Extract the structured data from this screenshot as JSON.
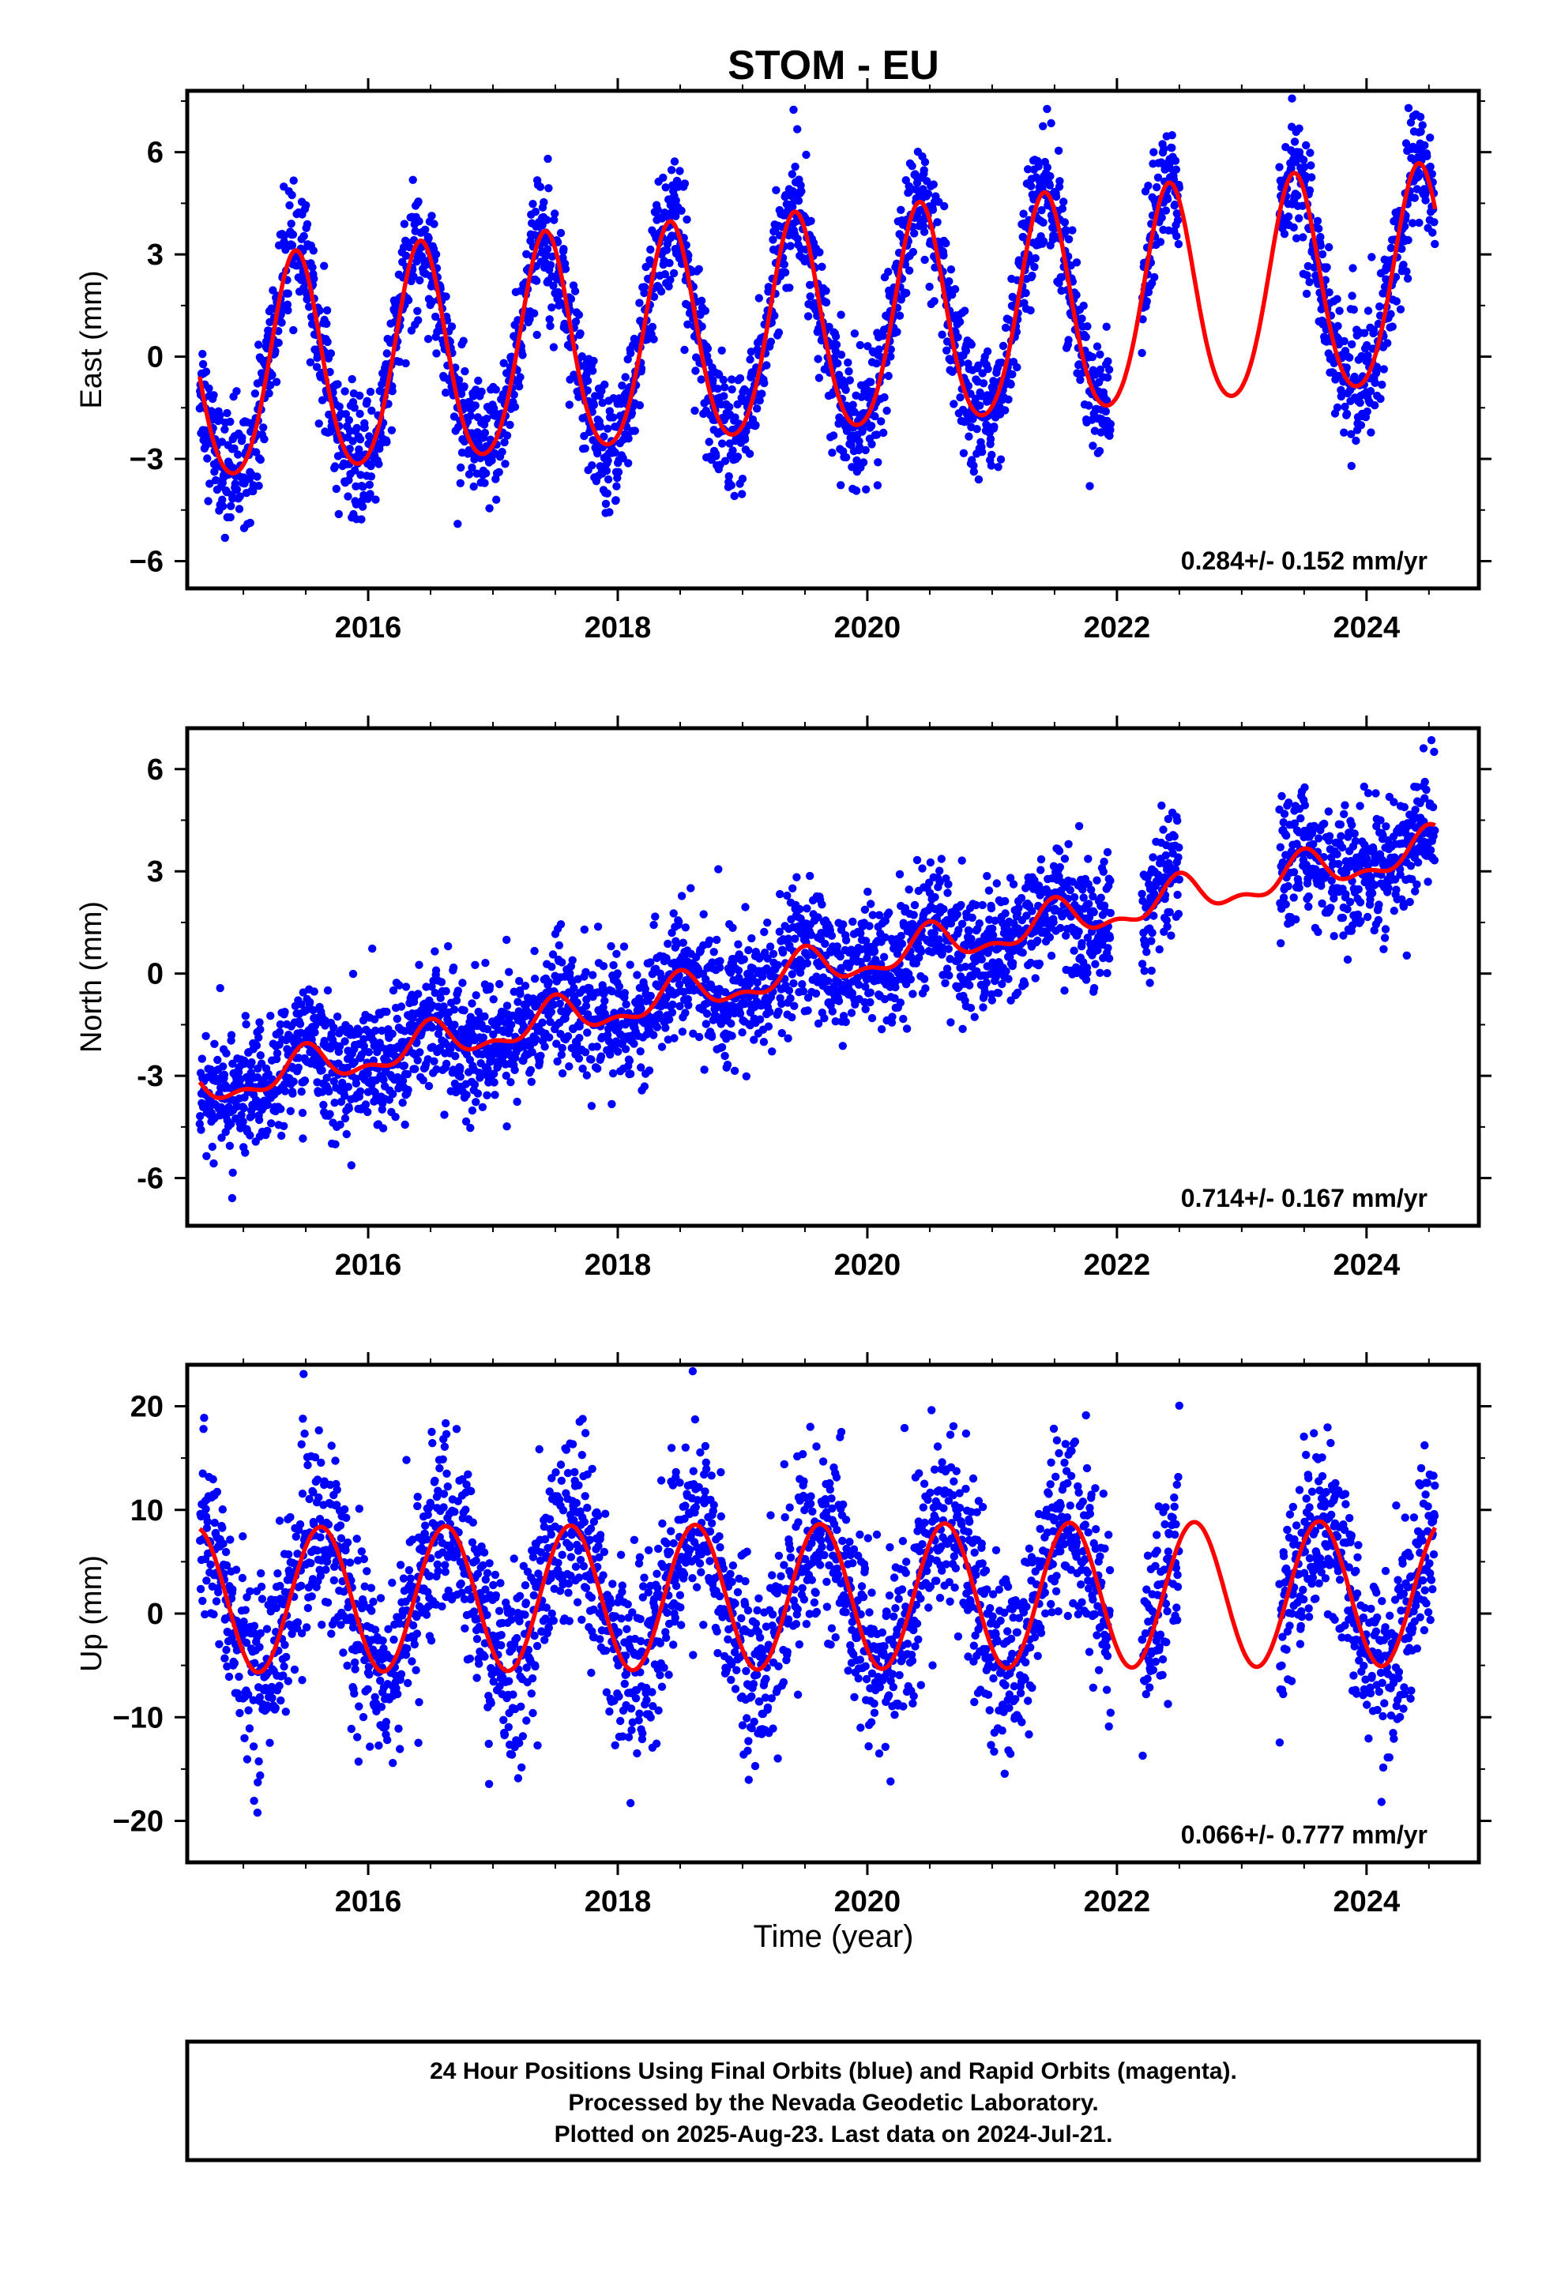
{
  "title": "STOM - EU",
  "xlabel": "Time (year)",
  "footer": {
    "line1": "24 Hour Positions Using Final Orbits (blue) and Rapid Orbits (magenta).",
    "line2": "Processed by the Nevada Geodetic Laboratory.",
    "line3": "Plotted on 2025-Aug-23. Last data on 2024-Jul-21."
  },
  "colors": {
    "points": "#0000ff",
    "fit": "#ff0000",
    "axis": "#000000"
  },
  "chart_data": [
    {
      "type": "scatter",
      "panel": "east",
      "ylabel": "East (mm)",
      "rate_text": "0.284+/- 0.152 mm/yr",
      "xlim": [
        2014.55,
        2024.9
      ],
      "ylim": [
        -6.8,
        7.8
      ],
      "x_ticks": [
        2016,
        2018,
        2020,
        2022,
        2024
      ],
      "y_ticks": [
        -6,
        -3,
        0,
        3,
        6
      ],
      "y_tick_labels": [
        "−6",
        "−3",
        "0",
        "3",
        "6"
      ],
      "data_start": 2014.65,
      "data_end": 2024.55,
      "gaps": [
        [
          2021.95,
          2022.2
        ],
        [
          2022.5,
          2023.3
        ]
      ],
      "model": {
        "offset": -0.65,
        "rate": 0.284,
        "amp_annual": 3.2,
        "phase_peak": 0.42,
        "amp_semi": 0.35,
        "scatter": 0.9
      },
      "series": [
        {
          "role": "observations",
          "color": "#0000ff"
        },
        {
          "role": "fit",
          "color": "#ff0000"
        }
      ]
    },
    {
      "type": "scatter",
      "panel": "north",
      "ylabel": "North (mm)",
      "rate_text": "0.714+/- 0.167 mm/yr",
      "xlim": [
        2014.55,
        2024.9
      ],
      "ylim": [
        -7.4,
        7.2
      ],
      "x_ticks": [
        2016,
        2018,
        2020,
        2022,
        2024
      ],
      "y_ticks": [
        -6,
        -3,
        0,
        3,
        6
      ],
      "y_tick_labels": [
        "-6",
        "-3",
        "0",
        "3",
        "6"
      ],
      "data_start": 2014.65,
      "data_end": 2024.55,
      "gaps": [
        [
          2021.95,
          2022.2
        ],
        [
          2022.5,
          2023.3
        ]
      ],
      "model": {
        "offset": -3.4,
        "rate": 0.714,
        "amp_annual": 0.5,
        "phase_peak": 0.5,
        "amp_semi": 0.25,
        "scatter": 0.9
      },
      "series": [
        {
          "role": "observations",
          "color": "#0000ff"
        },
        {
          "role": "fit",
          "color": "#ff0000"
        }
      ]
    },
    {
      "type": "scatter",
      "panel": "up",
      "ylabel": "Up (mm)",
      "rate_text": "0.066+/- 0.777 mm/yr",
      "xlim": [
        2014.55,
        2024.9
      ],
      "ylim": [
        -24,
        24
      ],
      "x_ticks": [
        2016,
        2018,
        2020,
        2022,
        2024
      ],
      "y_ticks": [
        -20,
        -10,
        0,
        10,
        20
      ],
      "y_tick_labels": [
        "−20",
        "−10",
        "0",
        "10",
        "20"
      ],
      "data_start": 2014.65,
      "data_end": 2024.55,
      "gaps": [
        [
          2021.95,
          2022.2
        ],
        [
          2022.5,
          2023.3
        ]
      ],
      "model": {
        "offset": 1.3,
        "rate": 0.066,
        "amp_annual": 7.0,
        "phase_peak": 0.62,
        "amp_semi": 0.0,
        "scatter": 4.5
      },
      "series": [
        {
          "role": "observations",
          "color": "#0000ff"
        },
        {
          "role": "fit",
          "color": "#ff0000"
        }
      ]
    }
  ]
}
